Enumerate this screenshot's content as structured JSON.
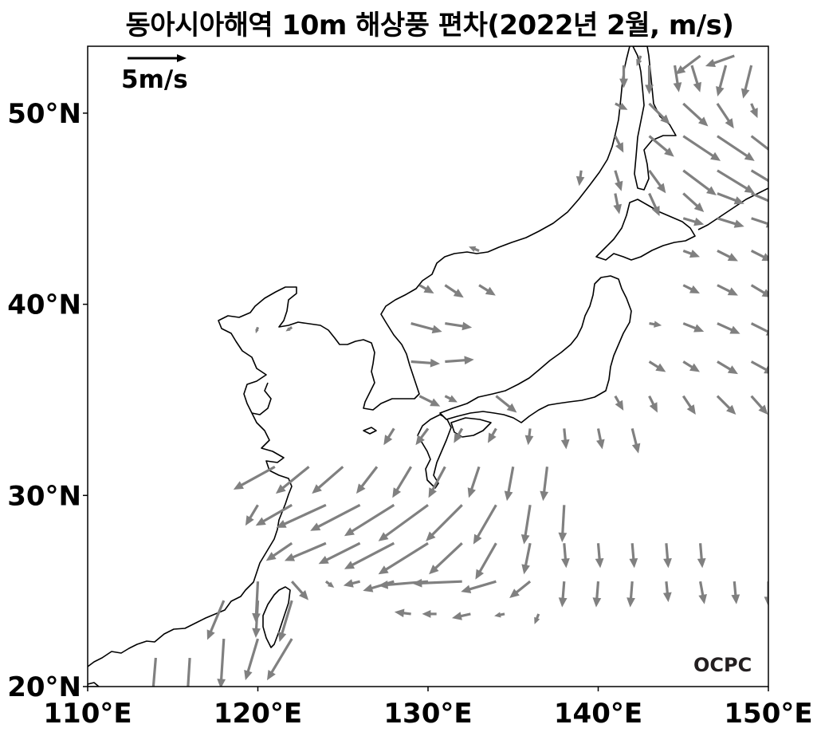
{
  "title": "동아시아해역 10m 해상풍 편차(2022년 2월, m/s)",
  "logo": "OCPC",
  "chart_data": {
    "type": "vector",
    "title": "동아시아해역 10m 해상풍 편차(2022년 2월, m/s)",
    "xlim": [
      110,
      150
    ],
    "ylim": [
      20,
      53.5
    ],
    "x_ticks": [
      {
        "value": 110,
        "label": "110°E"
      },
      {
        "value": 120,
        "label": "120°E"
      },
      {
        "value": 130,
        "label": "130°E"
      },
      {
        "value": 140,
        "label": "140°E"
      },
      {
        "value": 150,
        "label": "150°E"
      }
    ],
    "y_ticks": [
      {
        "value": 20,
        "label": "20°N"
      },
      {
        "value": 30,
        "label": "30°N"
      },
      {
        "value": 40,
        "label": "40°N"
      },
      {
        "value": 50,
        "label": "50°N"
      }
    ],
    "reference_vector": {
      "label": "5m/s",
      "speed": 5,
      "direction": "east"
    },
    "vector_color": "#808080",
    "coastline_color": "#000000",
    "vectors": [
      [
        114,
        21.5,
        -0.4,
        -4.8
      ],
      [
        116,
        21.5,
        -0.3,
        -4.8
      ],
      [
        118,
        22.5,
        -0.3,
        -4.8
      ],
      [
        120,
        22.5,
        -1.2,
        -4.0
      ],
      [
        122,
        22.5,
        -2.4,
        -4.0
      ],
      [
        118,
        24.5,
        -1.6,
        -3.8
      ],
      [
        120,
        24.5,
        -0.2,
        -3.6
      ],
      [
        122,
        24.5,
        -1.2,
        -4.0
      ],
      [
        120,
        25.5,
        -0.2,
        -4.0
      ],
      [
        122,
        25.5,
        1.6,
        -1.8
      ],
      [
        124,
        25.5,
        0.8,
        -0.6
      ],
      [
        126,
        25.5,
        -1.6,
        -0.4
      ],
      [
        128,
        25.5,
        -3.0,
        -0.9
      ],
      [
        130,
        25.5,
        -4.8,
        -0.4
      ],
      [
        132,
        25.5,
        -4.8,
        -0.2
      ],
      [
        134,
        25.5,
        -3.4,
        -1.0
      ],
      [
        136,
        25.5,
        -2.0,
        -1.6
      ],
      [
        138,
        25.5,
        -0.2,
        -2.5
      ],
      [
        140,
        25.5,
        -0.2,
        -2.5
      ],
      [
        142,
        25.5,
        -0.2,
        -2.5
      ],
      [
        144,
        25.5,
        0.2,
        -2.0
      ],
      [
        146,
        25.5,
        0.4,
        -2.2
      ],
      [
        148,
        25.5,
        0.2,
        -2.2
      ],
      [
        150,
        25.5,
        0.0,
        -2.4
      ],
      [
        129,
        23.8,
        -1.6,
        0.2
      ],
      [
        130.5,
        23.8,
        -1.4,
        0.0
      ],
      [
        132.5,
        23.8,
        -1.8,
        -0.4
      ],
      [
        134.5,
        23.8,
        -1.0,
        -0.2
      ],
      [
        136.5,
        23.8,
        -0.4,
        -1.0
      ],
      [
        122,
        27.5,
        -2.5,
        -1.7
      ],
      [
        124,
        27.5,
        -4.0,
        -1.7
      ],
      [
        126,
        27.5,
        -4.0,
        -2.0
      ],
      [
        128,
        27.5,
        -4.8,
        -2.5
      ],
      [
        130,
        27.5,
        -4.8,
        -3.0
      ],
      [
        132,
        27.5,
        -3.2,
        -3.0
      ],
      [
        134,
        27.5,
        -2.0,
        -3.5
      ],
      [
        136,
        27.5,
        -0.6,
        -3.0
      ],
      [
        138,
        27.5,
        0.2,
        -2.4
      ],
      [
        140,
        27.5,
        0.2,
        -2.4
      ],
      [
        142,
        27.5,
        0.2,
        -2.4
      ],
      [
        144,
        27.5,
        0.2,
        -2.4
      ],
      [
        146,
        27.5,
        0.2,
        -2.4
      ],
      [
        120,
        29.5,
        -1.2,
        -2.0
      ],
      [
        122,
        29.5,
        -3.5,
        -2.0
      ],
      [
        124,
        29.5,
        -4.8,
        -2.2
      ],
      [
        126,
        29.5,
        -4.8,
        -2.5
      ],
      [
        128,
        29.5,
        -4.8,
        -3.0
      ],
      [
        130,
        29.5,
        -4.8,
        -3.5
      ],
      [
        132,
        29.5,
        -3.5,
        -3.5
      ],
      [
        134,
        29.5,
        -2.2,
        -3.8
      ],
      [
        136,
        29.5,
        -0.6,
        -3.8
      ],
      [
        138,
        29.5,
        -0.2,
        -3.6
      ],
      [
        121,
        31.5,
        -4.0,
        -2.2
      ],
      [
        123,
        31.5,
        -3.2,
        -2.6
      ],
      [
        125,
        31.5,
        -3.0,
        -2.6
      ],
      [
        127,
        31.5,
        -2.0,
        -2.6
      ],
      [
        129,
        31.5,
        -1.8,
        -3.0
      ],
      [
        131,
        31.5,
        -1.6,
        -3.0
      ],
      [
        133,
        31.5,
        -1.0,
        -3.0
      ],
      [
        135,
        31.5,
        -0.6,
        -3.3
      ],
      [
        137,
        31.5,
        -0.4,
        -3.3
      ],
      [
        128,
        33.5,
        -1.0,
        -1.6
      ],
      [
        130,
        33.5,
        -1.2,
        -1.6
      ],
      [
        132,
        33.5,
        -0.8,
        -1.4
      ],
      [
        134,
        33.5,
        -0.8,
        -1.4
      ],
      [
        136,
        33.5,
        -0.2,
        -1.6
      ],
      [
        138,
        33.5,
        0.2,
        -2.0
      ],
      [
        140,
        33.5,
        0.4,
        -2.0
      ],
      [
        142,
        33.5,
        0.6,
        -2.4
      ],
      [
        128,
        35.0,
        0.0,
        0.0
      ],
      [
        129.5,
        35.2,
        2.0,
        -1.0
      ],
      [
        131,
        35.2,
        1.2,
        -0.6
      ],
      [
        134,
        35.2,
        2.0,
        -1.6
      ],
      [
        141,
        35.2,
        0.8,
        -1.4
      ],
      [
        143,
        35.2,
        0.8,
        -1.6
      ],
      [
        145,
        35.2,
        1.2,
        -1.8
      ],
      [
        147,
        35.2,
        1.8,
        -1.8
      ],
      [
        149,
        35.2,
        1.6,
        -1.8
      ],
      [
        129,
        37.0,
        2.8,
        -0.2
      ],
      [
        131,
        37.0,
        2.8,
        0.2
      ],
      [
        143,
        37.0,
        1.6,
        -1.0
      ],
      [
        145,
        37.0,
        1.6,
        -1.0
      ],
      [
        147,
        37.0,
        2.0,
        -1.2
      ],
      [
        149,
        37.0,
        2.2,
        -1.2
      ],
      [
        129,
        39.0,
        3.0,
        -0.8
      ],
      [
        131,
        39.0,
        2.6,
        -0.4
      ],
      [
        143,
        39.0,
        1.2,
        -0.2
      ],
      [
        145,
        39.0,
        2.0,
        -0.8
      ],
      [
        147,
        39.0,
        2.2,
        -1.0
      ],
      [
        149,
        39.0,
        2.4,
        -1.2
      ],
      [
        129.5,
        41.0,
        1.4,
        -0.8
      ],
      [
        131,
        41.0,
        1.8,
        -1.2
      ],
      [
        133,
        41.0,
        1.6,
        -1.0
      ],
      [
        145,
        41.0,
        1.6,
        -0.8
      ],
      [
        147,
        41.0,
        2.0,
        -1.0
      ],
      [
        149,
        41.0,
        2.0,
        -1.2
      ],
      [
        133,
        42.8,
        -1.0,
        0.4
      ],
      [
        145,
        42.8,
        1.6,
        -0.6
      ],
      [
        147,
        42.8,
        2.0,
        -1.0
      ],
      [
        149,
        42.8,
        2.0,
        -1.0
      ],
      [
        145,
        44.5,
        2.0,
        -0.6
      ],
      [
        147,
        44.5,
        2.6,
        -0.8
      ],
      [
        149,
        44.5,
        2.4,
        -0.8
      ],
      [
        141,
        45.8,
        0.4,
        -2.0
      ],
      [
        143,
        45.8,
        1.0,
        -2.2
      ],
      [
        145,
        45.8,
        2.0,
        -1.8
      ],
      [
        147,
        45.8,
        2.6,
        -1.0
      ],
      [
        149,
        45.8,
        2.8,
        -1.2
      ],
      [
        139,
        47.0,
        -0.2,
        -1.5
      ],
      [
        141,
        47.0,
        0.6,
        -2.0
      ],
      [
        143,
        47.0,
        1.6,
        -2.2
      ],
      [
        145,
        47.0,
        3.2,
        -2.4
      ],
      [
        147,
        47.0,
        3.6,
        -2.2
      ],
      [
        149,
        47.0,
        3.0,
        -1.8
      ],
      [
        141,
        48.8,
        0.8,
        -1.6
      ],
      [
        143,
        48.8,
        2.4,
        -2.0
      ],
      [
        145,
        48.8,
        3.6,
        -2.4
      ],
      [
        147,
        48.8,
        3.6,
        -2.4
      ],
      [
        149,
        48.8,
        2.6,
        -2.0
      ],
      [
        141,
        50.5,
        1.2,
        -0.6
      ],
      [
        143,
        50.5,
        2.0,
        -2.0
      ],
      [
        145,
        50.5,
        2.4,
        -2.2
      ],
      [
        147,
        50.5,
        1.6,
        -2.4
      ],
      [
        149,
        50.5,
        0.6,
        -1.4
      ],
      [
        141.5,
        52.5,
        0.0,
        -2.2
      ],
      [
        143,
        52.5,
        0.0,
        -2.8
      ],
      [
        144.5,
        52.5,
        0.4,
        -2.6
      ],
      [
        145.5,
        52.5,
        0.8,
        -2.6
      ],
      [
        147.5,
        52.5,
        -0.8,
        -3.0
      ],
      [
        149,
        52.5,
        -0.8,
        -3.2
      ],
      [
        142.5,
        53.0,
        -0.4,
        -1.0
      ],
      [
        146,
        53.0,
        -2.4,
        -1.8
      ],
      [
        148,
        53.0,
        -2.8,
        -1.0
      ],
      [
        120,
        38.8,
        -0.2,
        -0.6
      ],
      [
        122,
        38.8,
        -0.6,
        -0.4
      ]
    ]
  }
}
